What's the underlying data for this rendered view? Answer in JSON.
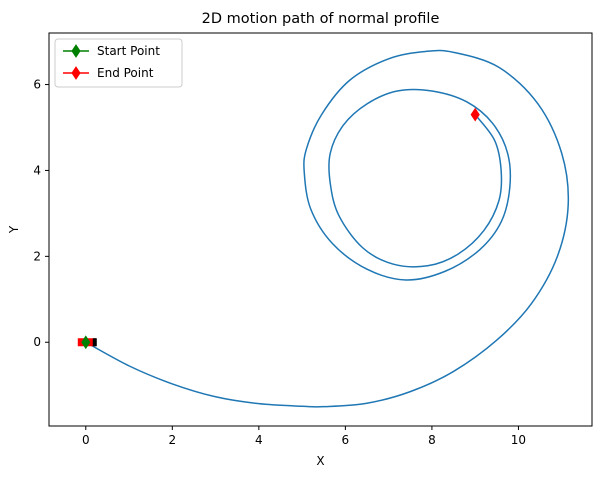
{
  "chart_data": {
    "type": "line",
    "title": "2D motion path of normal profile",
    "xlabel": "X",
    "ylabel": "Y",
    "xlim": [
      -0.85,
      11.7
    ],
    "ylim": [
      -1.95,
      7.2
    ],
    "x_ticks": [
      0,
      2,
      4,
      6,
      8,
      10
    ],
    "y_ticks": [
      0,
      2,
      4,
      6
    ],
    "grid": false,
    "legend_position": "top-left",
    "colors": {
      "path": "#1f77b4",
      "start": "#008000",
      "end": "#ff0000",
      "vehicle_body": "#ff0000",
      "vehicle_edge": "#000000"
    },
    "legend": [
      {
        "label": "Start Point",
        "color": "#008000",
        "marker": "diamond"
      },
      {
        "label": "End Point",
        "color": "#ff0000",
        "marker": "diamond"
      }
    ],
    "series": [
      {
        "name": "path",
        "points": [
          [
            0.0,
            0.0
          ],
          [
            1.0,
            -0.55
          ],
          [
            2.0,
            -0.97
          ],
          [
            3.0,
            -1.27
          ],
          [
            4.0,
            -1.43
          ],
          [
            5.0,
            -1.49
          ],
          [
            5.5,
            -1.5
          ],
          [
            6.5,
            -1.42
          ],
          [
            7.5,
            -1.15
          ],
          [
            8.5,
            -0.68
          ],
          [
            9.5,
            0.05
          ],
          [
            10.3,
            0.9
          ],
          [
            10.9,
            2.0
          ],
          [
            11.15,
            3.2
          ],
          [
            11.0,
            4.4
          ],
          [
            10.45,
            5.55
          ],
          [
            9.55,
            6.4
          ],
          [
            8.5,
            6.75
          ],
          [
            7.85,
            6.77
          ],
          [
            7.0,
            6.6
          ],
          [
            6.1,
            6.1
          ],
          [
            5.45,
            5.3
          ],
          [
            5.1,
            4.5
          ],
          [
            5.05,
            3.95
          ],
          [
            5.2,
            3.1
          ],
          [
            5.7,
            2.3
          ],
          [
            6.5,
            1.7
          ],
          [
            7.4,
            1.45
          ],
          [
            8.3,
            1.65
          ],
          [
            9.1,
            2.15
          ],
          [
            9.6,
            2.8
          ],
          [
            9.8,
            3.6
          ],
          [
            9.75,
            4.4
          ],
          [
            9.4,
            5.1
          ],
          [
            8.8,
            5.6
          ],
          [
            8.0,
            5.85
          ],
          [
            7.2,
            5.85
          ],
          [
            6.5,
            5.55
          ],
          [
            5.95,
            5.05
          ],
          [
            5.65,
            4.4
          ],
          [
            5.65,
            3.7
          ],
          [
            5.85,
            2.95
          ],
          [
            6.4,
            2.2
          ],
          [
            7.1,
            1.82
          ],
          [
            7.9,
            1.78
          ],
          [
            8.6,
            2.05
          ],
          [
            9.2,
            2.6
          ],
          [
            9.55,
            3.3
          ],
          [
            9.6,
            4.0
          ],
          [
            9.45,
            4.7
          ],
          [
            9.0,
            5.3
          ]
        ]
      }
    ],
    "start_point": {
      "x": 0.0,
      "y": 0.0
    },
    "end_point": {
      "x": 9.0,
      "y": 5.3
    }
  }
}
